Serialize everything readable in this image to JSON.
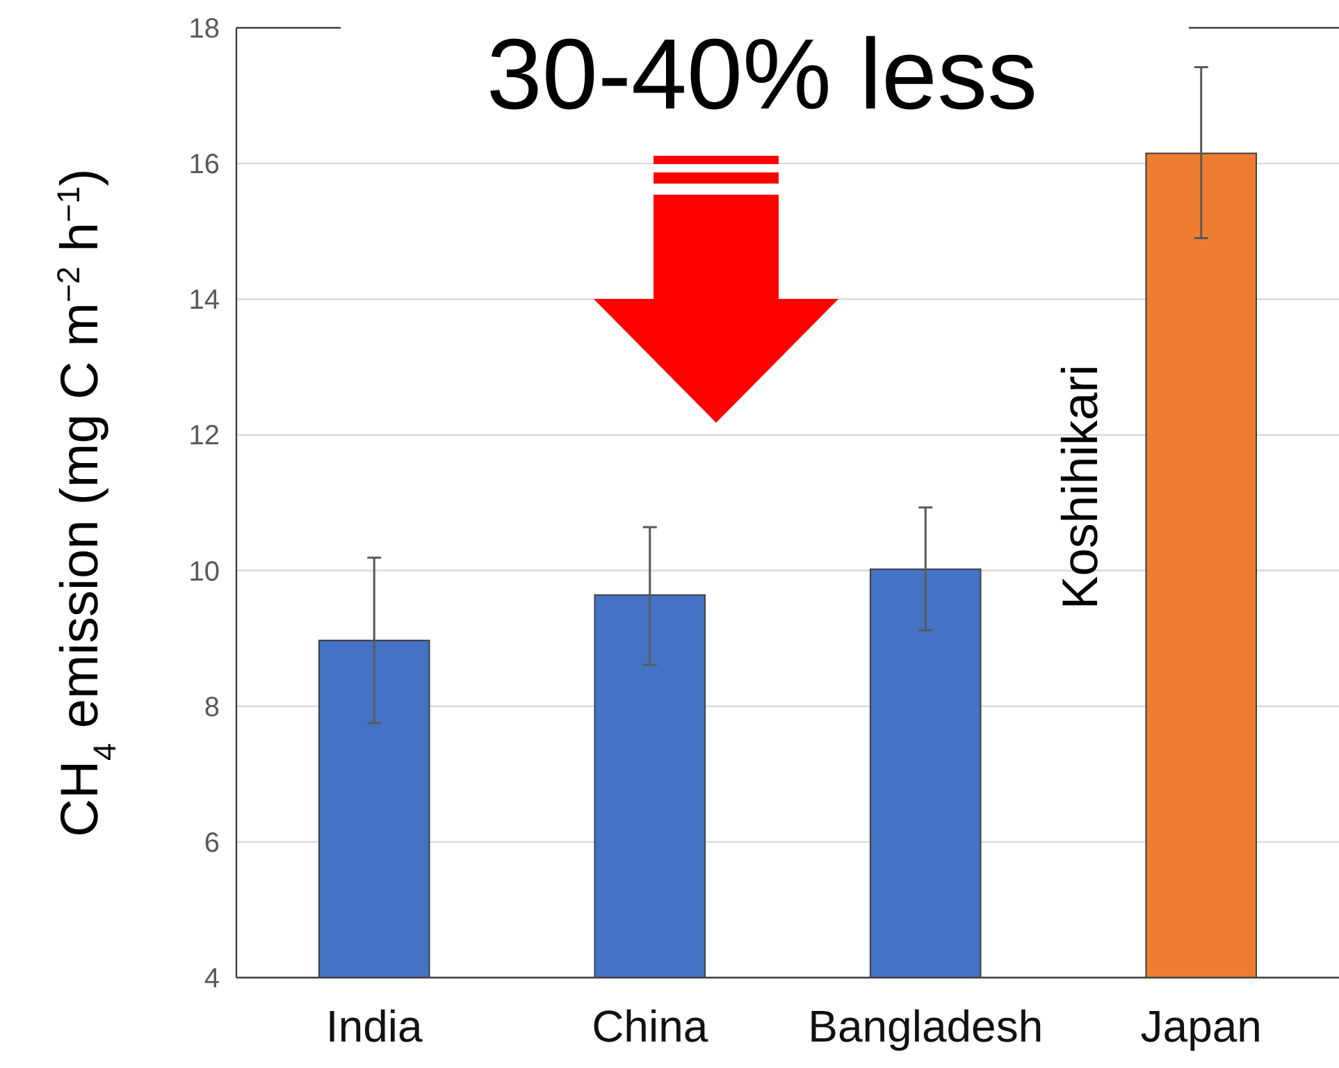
{
  "chart_data": {
    "type": "bar",
    "title": "30-40% less",
    "ylabel": "CH$_{4}$ emission (mg C m$^{−2}$ h$^{−1}$)",
    "categories": [
      "India",
      "China",
      "Bangladesh",
      "Japan"
    ],
    "values": [
      8.97,
      9.64,
      10.02,
      16.15
    ],
    "colors": [
      "#4472c4",
      "#4472c4",
      "#4472c4",
      "#ed7d31"
    ],
    "errors": [
      [
        7.75,
        10.19
      ],
      [
        8.61,
        10.64
      ],
      [
        9.12,
        10.93
      ],
      [
        14.9,
        17.42
      ]
    ],
    "ylim": [
      4,
      18
    ],
    "yticks": [
      4,
      6,
      8,
      10,
      12,
      14,
      16,
      18
    ],
    "grid": "y",
    "annotations": [
      "Koshihikari"
    ]
  }
}
